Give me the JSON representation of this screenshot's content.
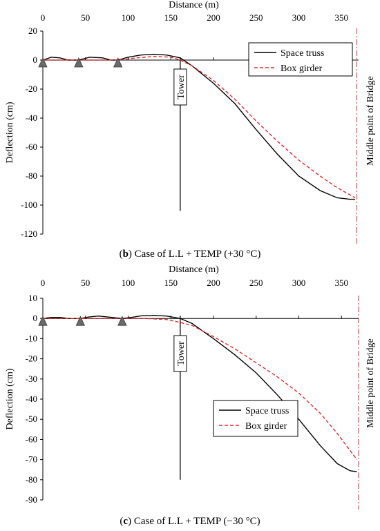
{
  "chart_data": [
    {
      "type": "line",
      "caption_letter": "b",
      "caption_rest": " Case of L.L + TEMP (+30 °C)",
      "xlabel": "Distance (m)",
      "ylabel": "Deflection (cm)",
      "xlim": [
        0,
        370
      ],
      "ylim": [
        -120,
        20
      ],
      "x_ticks": [
        0,
        50,
        100,
        150,
        200,
        250,
        300,
        350
      ],
      "y_ticks": [
        20,
        0,
        -20,
        -40,
        -60,
        -80,
        -100,
        -120
      ],
      "legend_position": "top-right",
      "tower_label": "Tower",
      "tower_x": 161,
      "tower_bottom_y": -104,
      "midpoint_label": "Middle point of Bridge",
      "midpoint_x": 368,
      "supports_x": [
        0,
        42,
        88
      ],
      "series": [
        {
          "name": "Space truss",
          "color": "#000000",
          "dash": "solid",
          "x": [
            0,
            10,
            20,
            30,
            42,
            55,
            70,
            80,
            88,
            100,
            115,
            130,
            145,
            161,
            175,
            200,
            225,
            250,
            275,
            300,
            325,
            345,
            360,
            366
          ],
          "y": [
            0,
            2,
            1.5,
            0,
            0,
            2,
            1.5,
            0,
            0,
            2,
            3.5,
            4,
            3.5,
            1.5,
            -4,
            -16,
            -30,
            -48,
            -65,
            -80,
            -90,
            -95,
            -96,
            -96
          ]
        },
        {
          "name": "Box girder",
          "color": "#e8262a",
          "dash": "dashed",
          "x": [
            0,
            20,
            42,
            60,
            88,
            110,
            130,
            150,
            161,
            175,
            200,
            225,
            250,
            275,
            300,
            325,
            345,
            366
          ],
          "y": [
            0,
            0,
            0,
            0,
            0,
            1.5,
            2.5,
            2,
            0,
            -4,
            -14,
            -27,
            -42,
            -56,
            -69,
            -80,
            -88,
            -95
          ]
        }
      ]
    },
    {
      "type": "line",
      "caption_letter": "c",
      "caption_rest": " Case of L.L + TEMP (−30 °C)",
      "xlabel": "Distance (m)",
      "ylabel": "Deflection (cm)",
      "xlim": [
        0,
        370
      ],
      "ylim": [
        -90,
        10
      ],
      "x_ticks": [
        0,
        50,
        100,
        150,
        200,
        250,
        300,
        350
      ],
      "y_ticks": [
        10,
        0,
        -10,
        -20,
        -30,
        -40,
        -50,
        -60,
        -70,
        -80,
        -90
      ],
      "legend_position": "bottom-right",
      "tower_label": "Tower",
      "tower_x": 161,
      "tower_bottom_y": -80,
      "midpoint_label": "Middle point of Bridge",
      "midpoint_x": 370,
      "supports_x": [
        0,
        44,
        93
      ],
      "series": [
        {
          "name": "Space truss",
          "color": "#000000",
          "dash": "solid",
          "x": [
            0,
            10,
            20,
            30,
            44,
            55,
            65,
            75,
            93,
            105,
            115,
            130,
            145,
            161,
            175,
            200,
            225,
            250,
            275,
            300,
            325,
            345,
            360,
            368
          ],
          "y": [
            0,
            0.5,
            0.5,
            0,
            0,
            0.8,
            1.2,
            0.8,
            0,
            0.6,
            1.3,
            1.5,
            1.2,
            0,
            -2.5,
            -10,
            -18,
            -27,
            -38,
            -50,
            -63,
            -72,
            -75.5,
            -76
          ]
        },
        {
          "name": "Box girder",
          "color": "#e8262a",
          "dash": "dashed",
          "x": [
            0,
            20,
            44,
            70,
            93,
            120,
            145,
            161,
            175,
            200,
            225,
            250,
            275,
            300,
            325,
            345,
            368
          ],
          "y": [
            0,
            0,
            0,
            0,
            0,
            0,
            -0.5,
            -2,
            -3.5,
            -9,
            -15,
            -22,
            -29,
            -37,
            -47,
            -57,
            -70
          ]
        }
      ]
    }
  ]
}
